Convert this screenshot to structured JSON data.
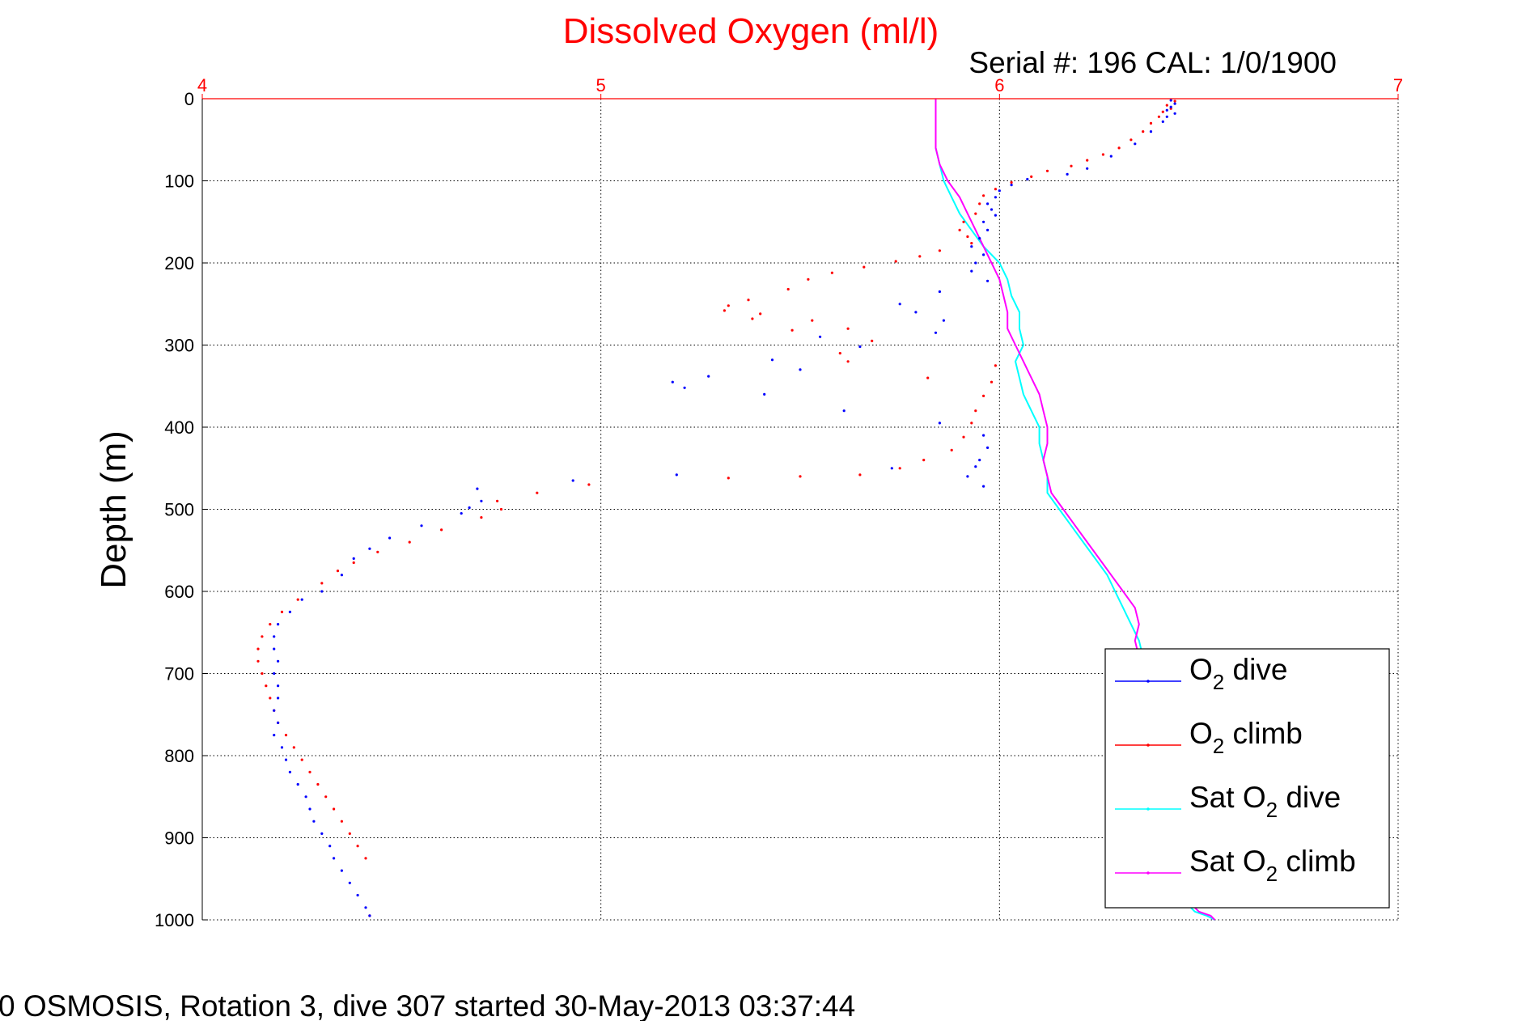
{
  "chart_data": {
    "type": "scatter",
    "title": "Dissolved Oxygen (ml/l)",
    "serial_text": "Serial #: 196  CAL: 1/0/1900",
    "ylabel": "Depth (m)",
    "footer": "0 OSMOSIS, Rotation 3, dive 307 started 30-May-2013 03:37:44",
    "xlim": [
      4,
      7
    ],
    "ylim": [
      0,
      1000
    ],
    "y_reversed": true,
    "x_axis_position": "top",
    "grid": true,
    "legend_position": "bottom-right",
    "xticks": [
      "4",
      "5",
      "6",
      "7"
    ],
    "yticks": [
      "0",
      "100",
      "200",
      "300",
      "400",
      "500",
      "600",
      "700",
      "800",
      "900",
      "1000"
    ],
    "colors": {
      "o2_dive": "#0000ff",
      "o2_climb": "#ff0000",
      "sat_dive": "#00ffff",
      "sat_climb": "#ff00ff",
      "title": "#ff0000",
      "grid": "#000000"
    },
    "series": [
      {
        "key": "o2_dive",
        "legend": {
          "pre": "O",
          "sub": "2",
          "post": " dive"
        },
        "style": "dots",
        "x": [
          6.43,
          6.44,
          6.43,
          6.42,
          6.44,
          6.42,
          6.41,
          6.38,
          6.34,
          6.28,
          6.22,
          6.17,
          6.07,
          6.03,
          6.0,
          5.99,
          5.97,
          5.98,
          5.99,
          5.96,
          5.97,
          5.95,
          5.93,
          5.96,
          5.94,
          5.93,
          5.97,
          5.85,
          5.75,
          5.79,
          5.86,
          5.84,
          5.55,
          5.65,
          5.43,
          5.5,
          5.27,
          5.18,
          5.21,
          5.41,
          5.61,
          5.85,
          5.96,
          5.97,
          5.95,
          5.94,
          5.92,
          5.96,
          5.73,
          5.19,
          4.93,
          4.69,
          4.7,
          4.67,
          4.65,
          4.55,
          4.47,
          4.42,
          4.38,
          4.35,
          4.3,
          4.25,
          4.22,
          4.19,
          4.18,
          4.18,
          4.19,
          4.18,
          4.19,
          4.19,
          4.18,
          4.19,
          4.18,
          4.2,
          4.21,
          4.22,
          4.24,
          4.26,
          4.27,
          4.28,
          4.3,
          4.32,
          4.33,
          4.35,
          4.37,
          4.39,
          4.41,
          4.42
        ],
        "y": [
          2,
          6,
          10,
          14,
          18,
          22,
          28,
          40,
          55,
          70,
          85,
          92,
          98,
          105,
          112,
          120,
          128,
          135,
          142,
          150,
          160,
          170,
          180,
          190,
          200,
          210,
          222,
          235,
          250,
          260,
          270,
          285,
          290,
          302,
          318,
          330,
          338,
          345,
          352,
          360,
          380,
          395,
          410,
          425,
          440,
          448,
          460,
          472,
          450,
          458,
          465,
          475,
          490,
          498,
          505,
          520,
          535,
          548,
          560,
          580,
          600,
          610,
          625,
          640,
          655,
          670,
          685,
          700,
          715,
          730,
          745,
          760,
          775,
          790,
          805,
          820,
          835,
          850,
          865,
          880,
          895,
          910,
          925,
          940,
          955,
          970,
          985,
          995
        ]
      },
      {
        "key": "o2_climb",
        "legend": {
          "pre": "O",
          "sub": "2",
          "post": " climb"
        },
        "style": "dots",
        "x": [
          6.44,
          6.42,
          6.43,
          6.41,
          6.4,
          6.38,
          6.36,
          6.33,
          6.3,
          6.26,
          6.22,
          6.18,
          6.12,
          6.08,
          6.03,
          5.99,
          5.96,
          5.95,
          5.94,
          5.91,
          5.9,
          5.92,
          5.93,
          5.85,
          5.8,
          5.74,
          5.66,
          5.58,
          5.52,
          5.47,
          5.37,
          5.31,
          5.4,
          5.53,
          5.62,
          5.68,
          5.6,
          5.32,
          5.38,
          5.48,
          5.62,
          5.82,
          5.99,
          5.98,
          5.96,
          5.94,
          5.93,
          5.91,
          5.88,
          5.81,
          5.75,
          5.65,
          5.5,
          5.32,
          4.97,
          4.84,
          4.74,
          4.75,
          4.7,
          4.6,
          4.52,
          4.44,
          4.38,
          4.34,
          4.3,
          4.24,
          4.2,
          4.17,
          4.15,
          4.14,
          4.14,
          4.15,
          4.16,
          4.17,
          4.18,
          4.19,
          4.21,
          4.23,
          4.25,
          4.27,
          4.29,
          4.31,
          4.33,
          4.35,
          4.37,
          4.39,
          4.41,
          4.42
        ],
        "y": [
          3,
          8,
          12,
          16,
          22,
          30,
          40,
          50,
          60,
          68,
          75,
          82,
          88,
          95,
          102,
          110,
          118,
          128,
          140,
          150,
          160,
          168,
          176,
          185,
          192,
          198,
          205,
          212,
          220,
          232,
          245,
          258,
          262,
          270,
          280,
          295,
          310,
          252,
          268,
          282,
          320,
          340,
          325,
          345,
          362,
          380,
          395,
          412,
          428,
          440,
          450,
          458,
          460,
          462,
          470,
          480,
          490,
          500,
          510,
          525,
          540,
          552,
          565,
          575,
          590,
          610,
          625,
          640,
          655,
          670,
          685,
          700,
          715,
          730,
          745,
          760,
          775,
          790,
          805,
          820,
          835,
          850,
          865,
          880,
          895,
          910,
          925,
          995
        ]
      },
      {
        "key": "sat_dive",
        "legend": {
          "pre": "Sat O",
          "sub": "2",
          "post": " dive"
        },
        "style": "line",
        "x": [
          5.84,
          5.84,
          5.84,
          5.84,
          5.85,
          5.86,
          5.88,
          5.9,
          5.93,
          5.96,
          6.0,
          6.02,
          6.03,
          6.05,
          6.05,
          6.06,
          6.04,
          6.05,
          6.06,
          6.08,
          6.1,
          6.1,
          6.11,
          6.12,
          6.12,
          6.12,
          6.15,
          6.18,
          6.21,
          6.24,
          6.27,
          6.29,
          6.31,
          6.33,
          6.35,
          6.36,
          6.36,
          6.35,
          6.35,
          6.35,
          6.36,
          6.37,
          6.38,
          6.38,
          6.38,
          6.39,
          6.4,
          6.41,
          6.42,
          6.44,
          6.47,
          6.49,
          6.52,
          6.54
        ],
        "y": [
          0,
          20,
          40,
          60,
          80,
          100,
          120,
          140,
          160,
          180,
          200,
          220,
          240,
          260,
          280,
          300,
          320,
          340,
          360,
          380,
          400,
          420,
          440,
          460,
          470,
          480,
          500,
          520,
          540,
          560,
          580,
          600,
          620,
          640,
          660,
          680,
          700,
          720,
          740,
          760,
          780,
          800,
          820,
          840,
          860,
          880,
          900,
          920,
          940,
          960,
          980,
          990,
          995,
          1000
        ]
      },
      {
        "key": "sat_climb",
        "legend": {
          "pre": "Sat O",
          "sub": "2",
          "post": " climb"
        },
        "style": "line",
        "x": [
          5.84,
          5.84,
          5.84,
          5.84,
          5.85,
          5.87,
          5.9,
          5.92,
          5.94,
          5.96,
          5.98,
          6.0,
          6.01,
          6.02,
          6.02,
          6.04,
          6.06,
          6.08,
          6.1,
          6.11,
          6.12,
          6.12,
          6.11,
          6.12,
          6.13,
          6.16,
          6.19,
          6.22,
          6.25,
          6.28,
          6.31,
          6.34,
          6.35,
          6.34,
          6.35,
          6.34,
          6.35,
          6.36,
          6.37,
          6.37,
          6.38,
          6.38,
          6.39,
          6.4,
          6.41,
          6.42,
          6.43,
          6.44,
          6.46,
          6.48,
          6.5,
          6.53,
          6.54
        ],
        "y": [
          0,
          20,
          40,
          60,
          80,
          100,
          120,
          140,
          160,
          180,
          200,
          220,
          240,
          260,
          280,
          300,
          320,
          340,
          360,
          380,
          400,
          420,
          440,
          460,
          480,
          500,
          520,
          540,
          560,
          580,
          600,
          620,
          640,
          660,
          680,
          700,
          720,
          740,
          760,
          780,
          800,
          820,
          840,
          860,
          880,
          900,
          920,
          940,
          960,
          980,
          990,
          995,
          1000
        ]
      }
    ]
  }
}
